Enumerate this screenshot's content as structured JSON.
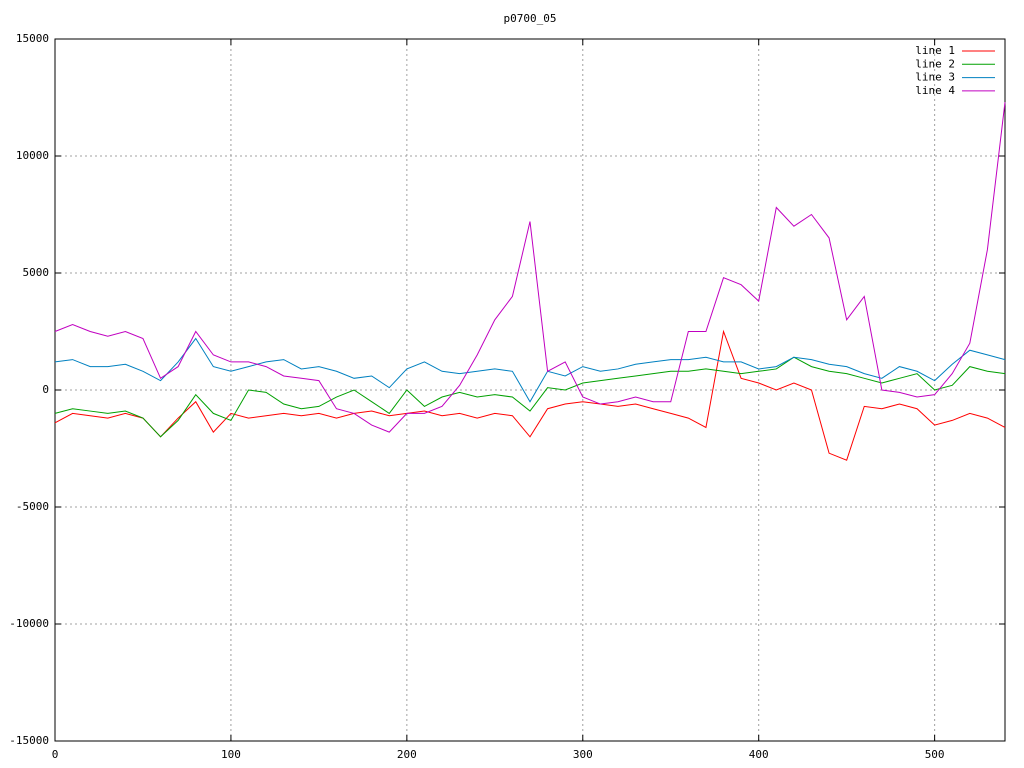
{
  "chart_data": {
    "type": "line",
    "title": "p0700_05",
    "x": [
      0,
      10,
      20,
      30,
      40,
      50,
      60,
      70,
      80,
      90,
      100,
      110,
      120,
      130,
      140,
      150,
      160,
      170,
      180,
      190,
      200,
      210,
      220,
      230,
      240,
      250,
      260,
      270,
      280,
      290,
      300,
      310,
      320,
      330,
      340,
      350,
      360,
      370,
      380,
      390,
      400,
      410,
      420,
      430,
      440,
      450,
      460,
      470,
      480,
      490,
      500,
      510,
      520,
      530,
      540
    ],
    "series": [
      {
        "name": "line 1",
        "color": "#ff0000",
        "values": [
          -1400,
          -1000,
          -1100,
          -1200,
          -1000,
          -1200,
          -2000,
          -1200,
          -500,
          -1800,
          -1000,
          -1200,
          -1100,
          -1000,
          -1100,
          -1000,
          -1200,
          -1000,
          -900,
          -1100,
          -1000,
          -900,
          -1100,
          -1000,
          -1200,
          -1000,
          -1100,
          -2000,
          -800,
          -600,
          -500,
          -600,
          -700,
          -600,
          -800,
          -1000,
          -1200,
          -1600,
          2500,
          500,
          300,
          0,
          300,
          0,
          -2700,
          -3000,
          -700,
          -800,
          -600,
          -800,
          -1500,
          -1300,
          -1000,
          -1200,
          -1600
        ]
      },
      {
        "name": "line 2",
        "color": "#00a000",
        "values": [
          -1000,
          -800,
          -900,
          -1000,
          -900,
          -1200,
          -2000,
          -1300,
          -200,
          -1000,
          -1300,
          0,
          -100,
          -600,
          -800,
          -700,
          -300,
          0,
          -500,
          -1000,
          0,
          -700,
          -300,
          -100,
          -300,
          -200,
          -300,
          -900,
          100,
          0,
          300,
          400,
          500,
          600,
          700,
          800,
          800,
          900,
          800,
          700,
          800,
          900,
          1400,
          1000,
          800,
          700,
          500,
          300,
          500,
          700,
          0,
          200,
          1000,
          800,
          700
        ]
      },
      {
        "name": "line 3",
        "color": "#0080c0",
        "values": [
          1200,
          1300,
          1000,
          1000,
          1100,
          800,
          400,
          1200,
          2200,
          1000,
          800,
          1000,
          1200,
          1300,
          900,
          1000,
          800,
          500,
          600,
          100,
          900,
          1200,
          800,
          700,
          800,
          900,
          800,
          -500,
          800,
          600,
          1000,
          800,
          900,
          1100,
          1200,
          1300,
          1300,
          1400,
          1200,
          1200,
          900,
          1000,
          1400,
          1300,
          1100,
          1000,
          700,
          500,
          1000,
          800,
          400,
          1100,
          1700,
          1500,
          1300
        ]
      },
      {
        "name": "line 4",
        "color": "#c000c0",
        "values": [
          2500,
          2800,
          2500,
          2300,
          2500,
          2200,
          500,
          1000,
          2500,
          1500,
          1200,
          1200,
          1000,
          600,
          500,
          400,
          -800,
          -1000,
          -1500,
          -1800,
          -1000,
          -1000,
          -700,
          200,
          1500,
          3000,
          4000,
          7200,
          800,
          1200,
          -300,
          -600,
          -500,
          -300,
          -500,
          -500,
          2500,
          2500,
          4800,
          4500,
          3800,
          7800,
          7000,
          7500,
          6500,
          3000,
          4000,
          0,
          -100,
          -300,
          -200,
          700,
          2000,
          6000,
          12300
        ]
      }
    ],
    "xlim": [
      0,
      540
    ],
    "xticks": [
      0,
      100,
      200,
      300,
      400,
      500
    ],
    "ylim": [
      -15000,
      15000
    ],
    "yticks": [
      -15000,
      -10000,
      -5000,
      0,
      5000,
      10000,
      15000
    ],
    "grid": true,
    "legend": "top-right"
  }
}
